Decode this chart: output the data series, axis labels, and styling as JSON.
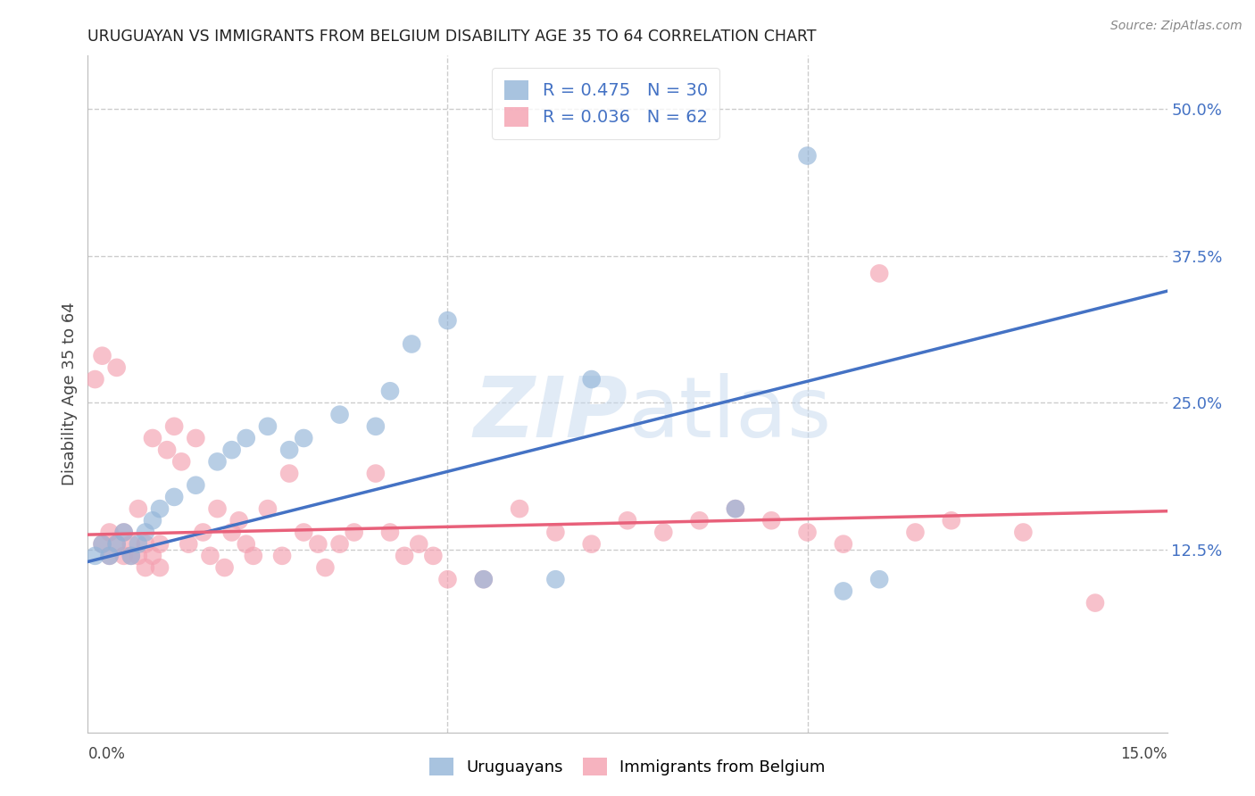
{
  "title": "URUGUAYAN VS IMMIGRANTS FROM BELGIUM DISABILITY AGE 35 TO 64 CORRELATION CHART",
  "source": "Source: ZipAtlas.com",
  "ylabel": "Disability Age 35 to 64",
  "y_tick_labels": [
    "12.5%",
    "25.0%",
    "37.5%",
    "50.0%"
  ],
  "y_tick_values": [
    0.125,
    0.25,
    0.375,
    0.5
  ],
  "x_range": [
    0.0,
    0.15
  ],
  "y_range": [
    -0.03,
    0.545
  ],
  "blue_color": "#92B4D8",
  "pink_color": "#F4A0B0",
  "blue_line_color": "#4472C4",
  "pink_line_color": "#E8607A",
  "watermark_color": "#C5D8EE",
  "legend_label1": "Uruguayans",
  "legend_label2": "Immigrants from Belgium",
  "blue_scatter_x": [
    0.001,
    0.002,
    0.003,
    0.004,
    0.005,
    0.006,
    0.007,
    0.008,
    0.009,
    0.01,
    0.012,
    0.015,
    0.018,
    0.02,
    0.022,
    0.025,
    0.028,
    0.03,
    0.035,
    0.04,
    0.042,
    0.045,
    0.05,
    0.055,
    0.065,
    0.07,
    0.09,
    0.1,
    0.105,
    0.11
  ],
  "blue_scatter_y": [
    0.12,
    0.13,
    0.12,
    0.13,
    0.14,
    0.12,
    0.13,
    0.14,
    0.15,
    0.16,
    0.17,
    0.18,
    0.2,
    0.21,
    0.22,
    0.23,
    0.21,
    0.22,
    0.24,
    0.23,
    0.26,
    0.3,
    0.32,
    0.1,
    0.1,
    0.27,
    0.16,
    0.46,
    0.09,
    0.1
  ],
  "pink_scatter_x": [
    0.001,
    0.002,
    0.002,
    0.003,
    0.003,
    0.004,
    0.004,
    0.005,
    0.005,
    0.006,
    0.006,
    0.007,
    0.007,
    0.008,
    0.008,
    0.009,
    0.009,
    0.01,
    0.01,
    0.011,
    0.012,
    0.013,
    0.014,
    0.015,
    0.016,
    0.017,
    0.018,
    0.019,
    0.02,
    0.021,
    0.022,
    0.023,
    0.025,
    0.027,
    0.028,
    0.03,
    0.032,
    0.033,
    0.035,
    0.037,
    0.04,
    0.042,
    0.044,
    0.046,
    0.048,
    0.05,
    0.055,
    0.06,
    0.065,
    0.07,
    0.075,
    0.08,
    0.085,
    0.09,
    0.095,
    0.1,
    0.105,
    0.11,
    0.115,
    0.12,
    0.13,
    0.14
  ],
  "pink_scatter_y": [
    0.27,
    0.29,
    0.13,
    0.12,
    0.14,
    0.28,
    0.13,
    0.12,
    0.14,
    0.13,
    0.12,
    0.16,
    0.12,
    0.11,
    0.13,
    0.22,
    0.12,
    0.11,
    0.13,
    0.21,
    0.23,
    0.2,
    0.13,
    0.22,
    0.14,
    0.12,
    0.16,
    0.11,
    0.14,
    0.15,
    0.13,
    0.12,
    0.16,
    0.12,
    0.19,
    0.14,
    0.13,
    0.11,
    0.13,
    0.14,
    0.19,
    0.14,
    0.12,
    0.13,
    0.12,
    0.1,
    0.1,
    0.16,
    0.14,
    0.13,
    0.15,
    0.14,
    0.15,
    0.16,
    0.15,
    0.14,
    0.13,
    0.36,
    0.14,
    0.15,
    0.14,
    0.08
  ],
  "blue_line_x": [
    0.0,
    0.15
  ],
  "blue_line_y": [
    0.115,
    0.345
  ],
  "pink_line_x": [
    0.0,
    0.15
  ],
  "pink_line_y": [
    0.138,
    0.158
  ],
  "grid_color": "#CCCCCC",
  "bg_color": "#FFFFFF"
}
